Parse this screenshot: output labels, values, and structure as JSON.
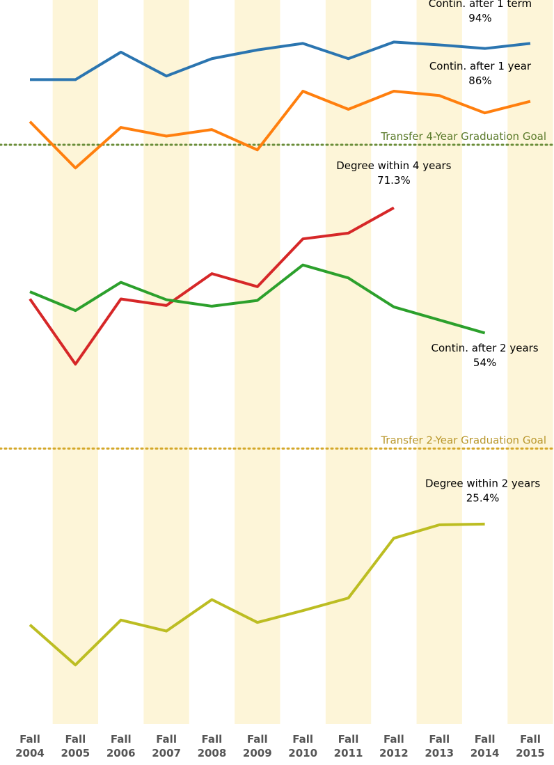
{
  "chart_data": {
    "type": "line",
    "categories": [
      "Fall 2004",
      "Fall 2005",
      "Fall 2006",
      "Fall 2007",
      "Fall 2008",
      "Fall 2009",
      "Fall 2010",
      "Fall 2011",
      "Fall 2012",
      "Fall 2013",
      "Fall 2014",
      "Fall 2015"
    ],
    "ylim": [
      0,
      100
    ],
    "y2lim": [
      0,
      92
    ],
    "band_color": "#fdf5d8",
    "series": [
      {
        "name": "Contin. after 1 term",
        "color": "#2b75b0",
        "values": [
          89,
          89,
          92.8,
          89.5,
          91.9,
          93.1,
          94,
          91.9,
          94.2,
          93.8,
          93.3,
          94
        ],
        "value_labels": [
          null,
          null,
          null,
          null,
          null,
          null,
          null,
          null,
          null,
          null,
          null,
          "94%"
        ]
      },
      {
        "name": "Contin. after 1 year",
        "color": "#ff7f0e",
        "values": [
          83.2,
          76.8,
          82.4,
          81.2,
          82.1,
          79.3,
          87.4,
          84.9,
          87.4,
          86.8,
          84.4,
          86
        ],
        "value_labels": [
          null,
          null,
          null,
          null,
          null,
          null,
          null,
          null,
          null,
          null,
          null,
          "86%"
        ]
      },
      {
        "name": "Degree within 4 years",
        "color": "#d62728",
        "values": [
          58.7,
          49.7,
          58.7,
          57.8,
          62.2,
          60.4,
          67.0,
          67.8,
          71.3,
          null,
          null,
          null
        ],
        "value_labels": [
          null,
          null,
          null,
          null,
          null,
          null,
          null,
          null,
          "71.3%",
          null,
          null,
          null
        ]
      },
      {
        "name": "Contin. after 2 years",
        "color": "#2ca02c",
        "values": [
          59.7,
          57.1,
          61.0,
          58.6,
          57.7,
          58.5,
          63.4,
          61.6,
          57.6,
          55.8,
          54,
          null
        ],
        "value_labels": [
          null,
          null,
          null,
          null,
          null,
          null,
          null,
          null,
          null,
          null,
          "54%",
          null
        ]
      },
      {
        "name": "Degree within 2 years",
        "color": "#bcbd22",
        "axis": "y2",
        "values": [
          12.6,
          7.5,
          13.2,
          11.8,
          15.8,
          12.9,
          14.4,
          16.0,
          23.6,
          25.3,
          25.4,
          null
        ],
        "value_labels": [
          null,
          null,
          null,
          null,
          null,
          null,
          null,
          null,
          null,
          null,
          "25.4%",
          null
        ]
      }
    ],
    "annotations": [
      {
        "text": "Transfer 4-Year Graduation Goal",
        "value": 80,
        "color": "#6b8e3a",
        "text_color": "#5a7a2a"
      },
      {
        "text": "Transfer 2-Year Graduation Goal",
        "value": 35,
        "axis": "y2",
        "color": "#d4a82a",
        "text_color": "#b8962a"
      }
    ]
  }
}
